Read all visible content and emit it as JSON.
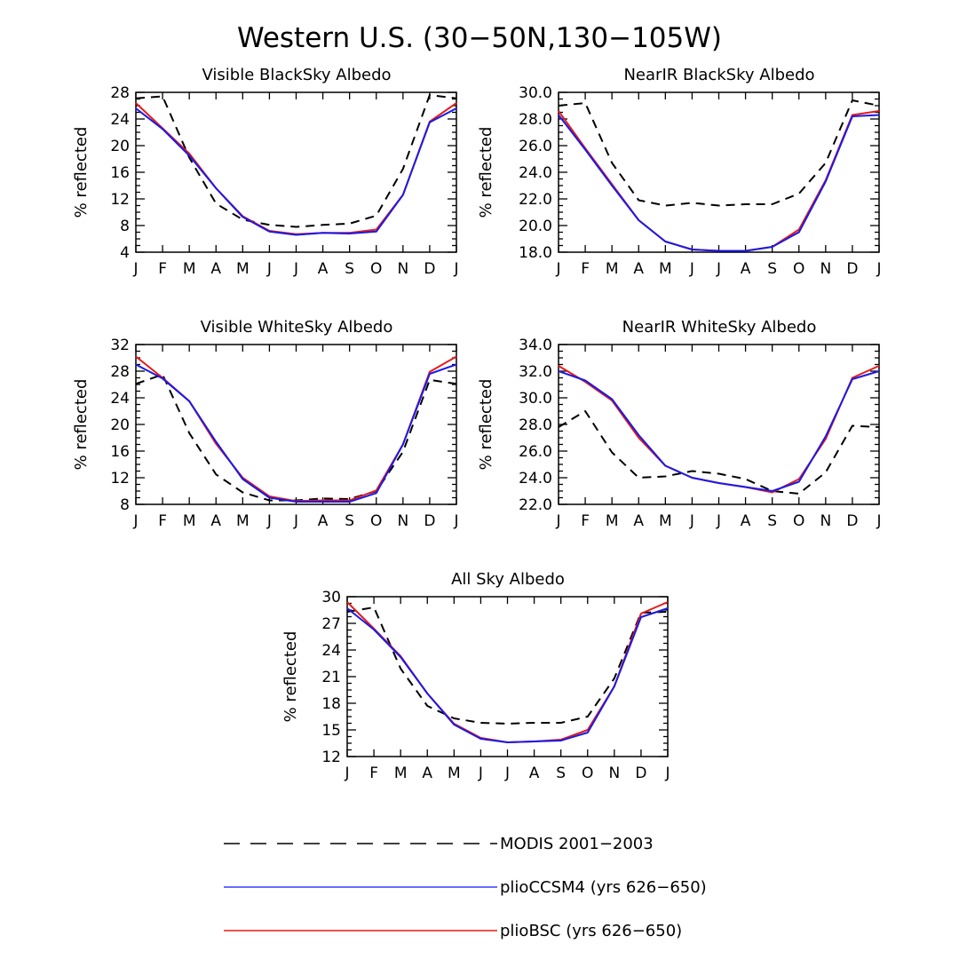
{
  "figure_title": "Western U.S. (30−50N,130−105W)",
  "colors": {
    "modis": "#000000",
    "pliocssm4": "#1a1ae6",
    "pliobsc": "#e61a1a"
  },
  "legend": [
    {
      "label": "MODIS 2001−2003",
      "style": "dashed",
      "color": "#000000"
    },
    {
      "label": "plioCCSM4 (yrs 626−650)",
      "style": "solid",
      "color": "#3a3aff"
    },
    {
      "label": "plioBSC (yrs 626−650)",
      "style": "solid",
      "color": "#e61a1a"
    }
  ],
  "chart_data": [
    {
      "type": "line",
      "title": "Visible BlackSky Albedo",
      "xlabel": "",
      "ylabel": "% reflected",
      "categories": [
        "J",
        "F",
        "M",
        "A",
        "M",
        "J",
        "J",
        "A",
        "S",
        "O",
        "N",
        "D",
        "J"
      ],
      "ylim": [
        4,
        28
      ],
      "yticks": [
        "4",
        "8",
        "12",
        "16",
        "20",
        "24",
        "28"
      ],
      "series": [
        {
          "name": "MODIS 2001−2003",
          "values": [
            27.1,
            27.4,
            18.2,
            11.3,
            8.9,
            8.1,
            7.8,
            8.1,
            8.3,
            9.5,
            16.5,
            27.6,
            27.1
          ]
        },
        {
          "name": "plioCCSM4 (yrs 626−650)",
          "values": [
            25.6,
            22.5,
            18.5,
            13.6,
            9.3,
            7.1,
            6.6,
            6.9,
            6.8,
            7.1,
            12.6,
            23.5,
            25.6
          ]
        },
        {
          "name": "plioBSC (yrs 626−650)",
          "values": [
            26.4,
            22.6,
            18.8,
            13.6,
            9.4,
            7.2,
            6.7,
            6.9,
            6.9,
            7.4,
            12.6,
            23.6,
            26.4
          ]
        }
      ]
    },
    {
      "type": "line",
      "title": "NearIR BlackSky Albedo",
      "xlabel": "",
      "ylabel": "% reflected",
      "categories": [
        "J",
        "F",
        "M",
        "A",
        "M",
        "J",
        "J",
        "A",
        "S",
        "O",
        "N",
        "D",
        "J"
      ],
      "ylim": [
        18,
        30
      ],
      "yticks": [
        "18.0",
        "20.0",
        "22.0",
        "24.0",
        "26.0",
        "28.0",
        "30.0"
      ],
      "series": [
        {
          "name": "MODIS 2001−2003",
          "values": [
            29.0,
            29.2,
            24.7,
            21.9,
            21.5,
            21.7,
            21.5,
            21.6,
            21.6,
            22.4,
            24.7,
            29.4,
            29.0
          ]
        },
        {
          "name": "plioCCSM4 (yrs 626−650)",
          "values": [
            28.3,
            25.7,
            23.0,
            20.4,
            18.8,
            18.2,
            18.1,
            18.1,
            18.4,
            19.5,
            23.3,
            28.2,
            28.3
          ]
        },
        {
          "name": "plioBSC (yrs 626−650)",
          "values": [
            28.6,
            25.8,
            23.1,
            20.4,
            18.8,
            18.2,
            18.1,
            18.1,
            18.4,
            19.7,
            23.4,
            28.3,
            28.6
          ]
        }
      ]
    },
    {
      "type": "line",
      "title": "Visible WhiteSky Albedo",
      "xlabel": "",
      "ylabel": "% reflected",
      "categories": [
        "J",
        "F",
        "M",
        "A",
        "M",
        "J",
        "J",
        "A",
        "S",
        "O",
        "N",
        "D",
        "J"
      ],
      "ylim": [
        8,
        32
      ],
      "yticks": [
        "8",
        "12",
        "16",
        "20",
        "24",
        "28",
        "32"
      ],
      "series": [
        {
          "name": "MODIS 2001−2003",
          "values": [
            26.1,
            27.5,
            18.7,
            12.5,
            9.8,
            8.6,
            8.6,
            8.9,
            8.8,
            10.0,
            15.9,
            26.7,
            26.1
          ]
        },
        {
          "name": "plioCCSM4 (yrs 626−650)",
          "values": [
            29.0,
            26.9,
            23.5,
            17.4,
            11.8,
            9.0,
            8.4,
            8.4,
            8.4,
            9.7,
            17.0,
            27.6,
            29.0
          ]
        },
        {
          "name": "plioBSC (yrs 626−650)",
          "values": [
            30.2,
            27.0,
            23.5,
            17.1,
            12.0,
            9.2,
            8.5,
            8.6,
            8.6,
            10.1,
            17.0,
            27.9,
            30.2
          ]
        }
      ]
    },
    {
      "type": "line",
      "title": "NearIR WhiteSky Albedo",
      "xlabel": "",
      "ylabel": "% reflected",
      "categories": [
        "J",
        "F",
        "M",
        "A",
        "M",
        "J",
        "J",
        "A",
        "S",
        "O",
        "N",
        "D",
        "J"
      ],
      "ylim": [
        22,
        34
      ],
      "yticks": [
        "22.0",
        "24.0",
        "26.0",
        "28.0",
        "30.0",
        "32.0",
        "34.0"
      ],
      "series": [
        {
          "name": "MODIS 2001−2003",
          "values": [
            27.8,
            29.0,
            25.9,
            24.0,
            24.1,
            24.5,
            24.3,
            23.9,
            23.0,
            22.8,
            24.4,
            27.9,
            27.8
          ]
        },
        {
          "name": "plioCCSM4 (yrs 626−650)",
          "values": [
            32.0,
            31.3,
            29.9,
            27.2,
            24.9,
            24.0,
            23.6,
            23.3,
            23.0,
            23.7,
            27.1,
            31.4,
            32.0
          ]
        },
        {
          "name": "plioBSC (yrs 626−650)",
          "values": [
            32.4,
            31.2,
            29.8,
            27.0,
            24.9,
            24.0,
            23.6,
            23.3,
            22.9,
            23.9,
            26.9,
            31.5,
            32.4
          ]
        }
      ]
    },
    {
      "type": "line",
      "title": "All Sky Albedo",
      "xlabel": "",
      "ylabel": "% reflected",
      "categories": [
        "J",
        "F",
        "M",
        "A",
        "M",
        "J",
        "J",
        "A",
        "S",
        "O",
        "N",
        "D",
        "J"
      ],
      "ylim": [
        12,
        30
      ],
      "yticks": [
        "12",
        "15",
        "18",
        "21",
        "24",
        "27",
        "30"
      ],
      "series": [
        {
          "name": "MODIS 2001−2003",
          "values": [
            28.3,
            28.8,
            21.9,
            17.7,
            16.3,
            15.8,
            15.7,
            15.8,
            15.8,
            16.5,
            20.8,
            28.2,
            28.3
          ]
        },
        {
          "name": "plioCCSM4 (yrs 626−650)",
          "values": [
            28.7,
            26.3,
            23.2,
            19.1,
            15.6,
            14.0,
            13.6,
            13.7,
            13.8,
            14.7,
            19.9,
            27.7,
            28.7
          ]
        },
        {
          "name": "plioBSC (yrs 626−650)",
          "values": [
            29.4,
            26.4,
            23.3,
            19.1,
            15.7,
            14.1,
            13.6,
            13.7,
            13.9,
            15.0,
            19.9,
            28.1,
            29.4
          ]
        }
      ]
    }
  ]
}
